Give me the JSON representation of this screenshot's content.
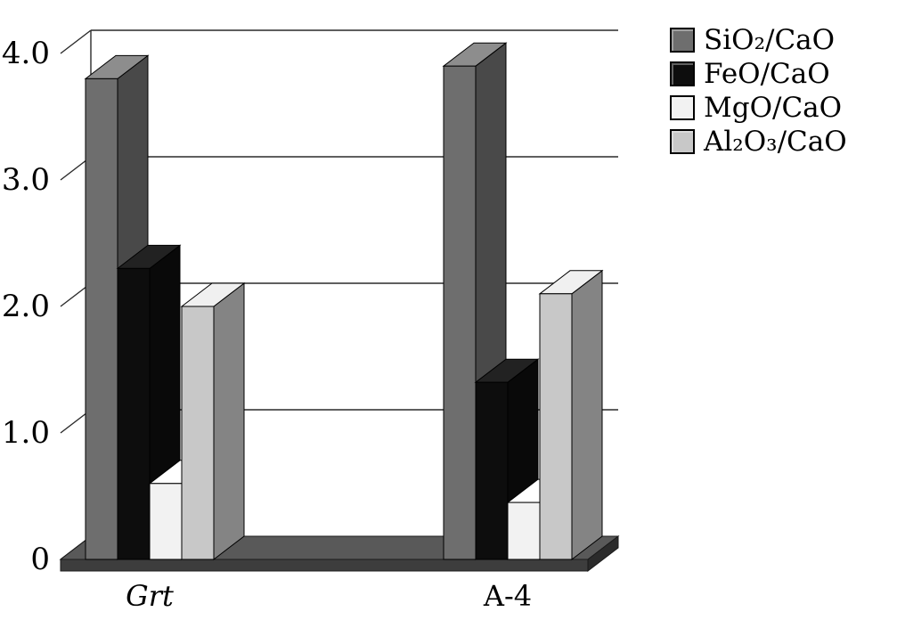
{
  "chart_data": {
    "type": "bar",
    "projection": "3d",
    "title": "",
    "xlabel": "",
    "ylabel": "",
    "categories": [
      "Grt",
      "A-4"
    ],
    "category_styles": [
      "italic",
      "normal"
    ],
    "series": [
      {
        "name": "SiO₂/CaO",
        "color": "#6e6e6e",
        "values": [
          3.8,
          3.9
        ]
      },
      {
        "name": "FeO/CaO",
        "color": "#0d0d0d",
        "values": [
          2.3,
          1.4
        ]
      },
      {
        "name": "MgO/CaO",
        "color": "#f2f2f2",
        "values": [
          0.6,
          0.45
        ]
      },
      {
        "name": "Al₂O₃/CaO",
        "color": "#c8c8c8",
        "values": [
          2.0,
          2.1
        ]
      }
    ],
    "ylim": [
      0,
      4
    ],
    "yticks": [
      "0",
      "1.0",
      "2.0",
      "3.0",
      "4.0"
    ],
    "ytick_values": [
      0,
      1,
      2,
      3,
      4
    ],
    "grid": true,
    "legend_position": "top-right",
    "floor_color": "#595959",
    "outline_color": "#000000",
    "gridline_color": "#2a2a2a"
  }
}
